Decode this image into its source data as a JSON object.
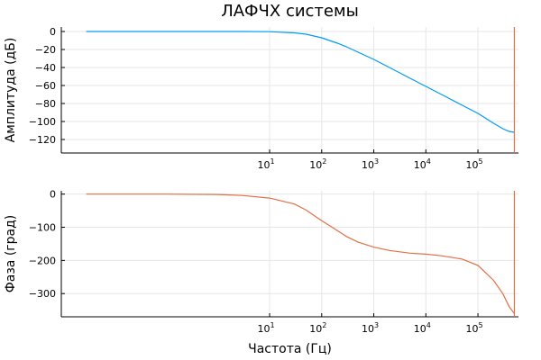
{
  "chart_data": [
    {
      "type": "line",
      "title": "ЛАФЧХ системы",
      "xlabel": "",
      "ylabel": "Амплитуда (дБ)",
      "xscale": "log",
      "xlim": [
        0.001,
        600000
      ],
      "ylim": [
        -135,
        5
      ],
      "grid": true,
      "legend": "none",
      "xticks": [
        {
          "value": 10,
          "base": "10",
          "exp": "1"
        },
        {
          "value": 100,
          "base": "10",
          "exp": "2"
        },
        {
          "value": 1000,
          "base": "10",
          "exp": "3"
        },
        {
          "value": 10000,
          "base": "10",
          "exp": "4"
        },
        {
          "value": 100000,
          "base": "10",
          "exp": "5"
        }
      ],
      "yticks": [
        {
          "value": 0,
          "label": "0"
        },
        {
          "value": -20,
          "label": "−20"
        },
        {
          "value": -40,
          "label": "−40"
        },
        {
          "value": -60,
          "label": "−60"
        },
        {
          "value": -80,
          "label": "−80"
        },
        {
          "value": -100,
          "label": "−100"
        },
        {
          "value": -120,
          "label": "−120"
        }
      ],
      "series": [
        {
          "color": "#009af9",
          "x": [
            0.003,
            0.01,
            0.1,
            1,
            3,
            10,
            30,
            50,
            100,
            200,
            300,
            500,
            1000,
            2000,
            5000,
            10000,
            20000,
            50000,
            100000,
            200000,
            300000,
            400000,
            500000
          ],
          "y": [
            0,
            0,
            0,
            0,
            0,
            -0.2,
            -1.5,
            -3,
            -7,
            -13,
            -17,
            -23,
            -31,
            -40,
            -52,
            -61,
            -70,
            -82,
            -91,
            -102,
            -108,
            -111,
            -112
          ]
        }
      ],
      "vline": {
        "x": 500000,
        "color": "#e26f46"
      }
    },
    {
      "type": "line",
      "title": "",
      "xlabel": "Частота (Гц)",
      "ylabel": "Фаза (град)",
      "xscale": "log",
      "xlim": [
        0.001,
        600000
      ],
      "ylim": [
        -370,
        10
      ],
      "grid": true,
      "legend": "none",
      "xticks": [
        {
          "value": 10,
          "base": "10",
          "exp": "1"
        },
        {
          "value": 100,
          "base": "10",
          "exp": "2"
        },
        {
          "value": 1000,
          "base": "10",
          "exp": "3"
        },
        {
          "value": 10000,
          "base": "10",
          "exp": "4"
        },
        {
          "value": 100000,
          "base": "10",
          "exp": "5"
        }
      ],
      "yticks": [
        {
          "value": 0,
          "label": "0"
        },
        {
          "value": -100,
          "label": "−100"
        },
        {
          "value": -200,
          "label": "−200"
        },
        {
          "value": -300,
          "label": "−300"
        }
      ],
      "series": [
        {
          "color": "#e26f46",
          "x": [
            0.003,
            0.01,
            0.1,
            1,
            3,
            10,
            30,
            50,
            100,
            200,
            300,
            500,
            1000,
            2000,
            5000,
            10000,
            20000,
            50000,
            100000,
            200000,
            300000,
            400000,
            500000
          ],
          "y": [
            0,
            0,
            0,
            -1,
            -4,
            -12,
            -30,
            -48,
            -80,
            -110,
            -128,
            -145,
            -160,
            -170,
            -178,
            -181,
            -186,
            -196,
            -215,
            -260,
            -300,
            -340,
            -360
          ]
        }
      ],
      "vline": {
        "x": 500000,
        "color": "#e26f46"
      }
    }
  ]
}
